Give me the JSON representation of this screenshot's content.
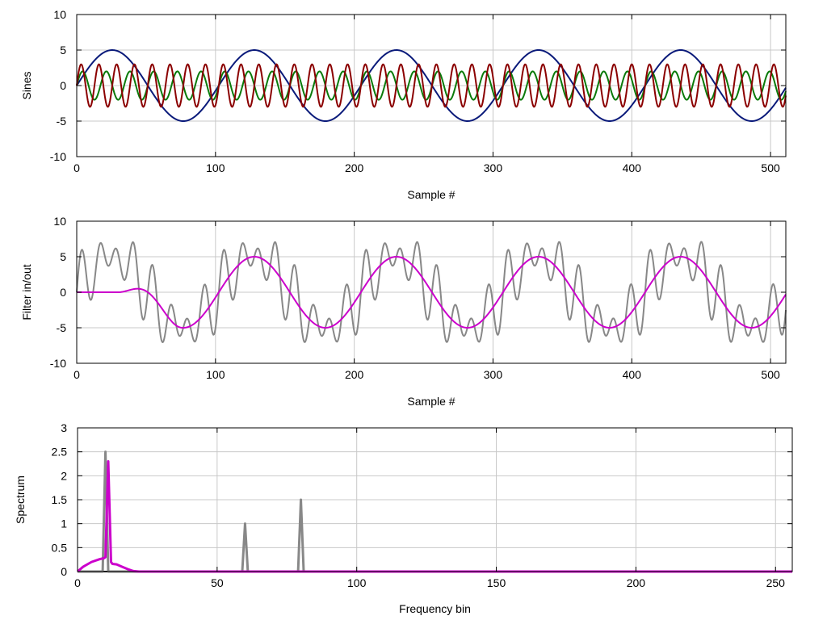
{
  "chart_data": [
    {
      "type": "line",
      "xlabel": "Sample #",
      "ylabel": "Sines",
      "xlim": [
        0,
        511
      ],
      "ylim": [
        -10,
        10
      ],
      "xticks": [
        0,
        100,
        200,
        300,
        400,
        500
      ],
      "yticks": [
        -10,
        -5,
        0,
        5,
        10
      ],
      "grid": true,
      "series": [
        {
          "color": "#0a1a7a",
          "amplitude": 5,
          "period_samples": 102.4,
          "phase_deg": 0
        },
        {
          "color": "#0a7a0a",
          "amplitude": 2,
          "period_samples": 17.07,
          "phase_deg": 0
        },
        {
          "color": "#8b0000",
          "amplitude": 3,
          "period_samples": 12.8,
          "phase_deg": 0
        }
      ]
    },
    {
      "type": "line",
      "xlabel": "Sample #",
      "ylabel": "Filter in/out",
      "xlim": [
        0,
        511
      ],
      "ylim": [
        -10,
        10
      ],
      "xticks": [
        0,
        100,
        200,
        300,
        400,
        500
      ],
      "yticks": [
        -10,
        -5,
        0,
        5,
        10
      ],
      "grid": true,
      "series": [
        {
          "color": "#888888",
          "kind": "sum of sines",
          "components": [
            {
              "amplitude": 5,
              "period_samples": 102.4
            },
            {
              "amplitude": 2,
              "period_samples": 17.07
            },
            {
              "amplitude": 3,
              "period_samples": 12.8
            }
          ]
        },
        {
          "color": "#cc00cc",
          "kind": "filtered",
          "amplitude": 5,
          "period_samples": 102.4,
          "onset_sample": 30,
          "settled_sample": 75
        }
      ]
    },
    {
      "type": "line",
      "xlabel": "Frequency bin",
      "ylabel": "Spectrum",
      "xlim": [
        0,
        256
      ],
      "ylim": [
        0,
        3
      ],
      "xticks": [
        0,
        50,
        100,
        150,
        200,
        250
      ],
      "yticks": [
        0,
        0.5,
        1,
        1.5,
        2,
        2.5,
        3
      ],
      "ytick_labels": [
        "0",
        "0.5",
        "1",
        "1.5",
        "2",
        "2.5",
        "3"
      ],
      "grid": true,
      "series": [
        {
          "color": "#888888",
          "peaks": [
            {
              "bin": 10,
              "value": 2.5
            },
            {
              "bin": 60,
              "value": 1.0
            },
            {
              "bin": 80,
              "value": 1.5
            }
          ]
        },
        {
          "color": "#cc00cc",
          "peaks": [
            {
              "bin": 11,
              "value": 2.3
            }
          ],
          "leakage": [
            [
              0,
              0.0
            ],
            [
              2,
              0.1
            ],
            [
              5,
              0.2
            ],
            [
              8,
              0.26
            ],
            [
              9.5,
              0.28
            ],
            [
              12.5,
              0.16
            ],
            [
              14,
              0.15
            ],
            [
              16,
              0.1
            ],
            [
              18,
              0.05
            ],
            [
              20,
              0.01
            ],
            [
              22,
              0.0
            ]
          ]
        }
      ]
    }
  ]
}
